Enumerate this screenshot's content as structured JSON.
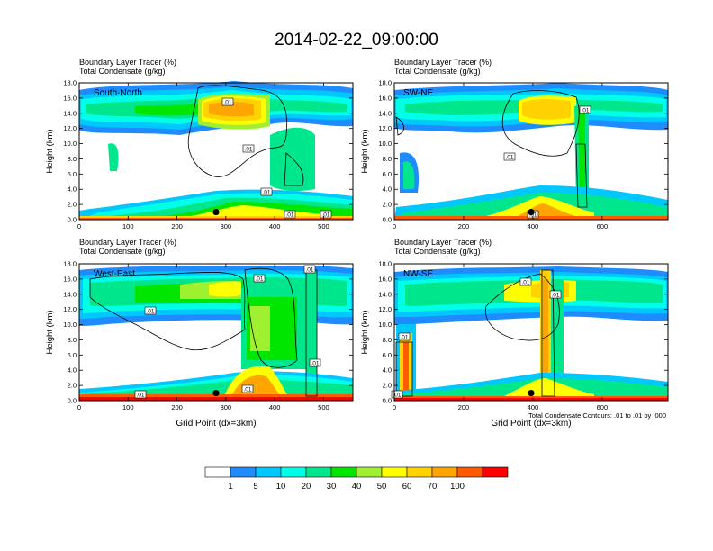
{
  "figure": {
    "title": "2014-02-22_09:00:00",
    "contour_note": "Total Condensate Contours: .01 to .01 by .000"
  },
  "colorbar": {
    "labels": [
      "1",
      "5",
      "10",
      "20",
      "30",
      "40",
      "50",
      "60",
      "70",
      "100"
    ],
    "colors": [
      "#ffffff",
      "#1e8cff",
      "#00c8ff",
      "#00ffe6",
      "#00e68c",
      "#00e600",
      "#a0f032",
      "#ffff00",
      "#ffd200",
      "#ffa500",
      "#ff5a00",
      "#ff0000"
    ]
  },
  "chart_data": [
    {
      "type": "heatmap",
      "panel": "South-North",
      "line1": "Boundary Layer Tracer   (%)",
      "line2": "Total Condensate   (g/kg)",
      "ylabel": "Height (km)",
      "xlabel": "",
      "xlim": [
        0,
        560
      ],
      "ylim": [
        0,
        18
      ],
      "xticks": [
        0,
        100,
        200,
        300,
        400,
        500
      ],
      "yticks": [
        "0.0",
        "2.0",
        "4.0",
        "6.0",
        "8.0",
        "10.0",
        "12.0",
        "14.0",
        "16.0",
        "18.0"
      ],
      "contour_labels": [
        ".01",
        ".01",
        ".01",
        ".01",
        ".01"
      ],
      "marker": {
        "x": 280,
        "y": 1.0
      }
    },
    {
      "type": "heatmap",
      "panel": "SW-NE",
      "line1": "Boundary Layer Tracer   (%)",
      "line2": "Total Condensate   (g/kg)",
      "ylabel": "Height (km)",
      "xlabel": "",
      "xlim": [
        0,
        790
      ],
      "ylim": [
        0,
        18
      ],
      "xticks": [
        0,
        200,
        400,
        600
      ],
      "yticks": [
        "0.0",
        "2.0",
        "4.0",
        "6.0",
        "8.0",
        "10.0",
        "12.0",
        "14.0",
        "16.0",
        "18.0"
      ],
      "contour_labels": [
        ".01",
        ".01",
        ".01",
        ".01"
      ],
      "marker": {
        "x": 395,
        "y": 1.0
      }
    },
    {
      "type": "heatmap",
      "panel": "West-East",
      "line1": "Boundary Layer Tracer   (%)",
      "line2": "Total Condensate   (g/kg)",
      "ylabel": "Height (km)",
      "xlabel": "Grid Point (dx=3km)",
      "xlim": [
        0,
        560
      ],
      "ylim": [
        0,
        18
      ],
      "xticks": [
        0,
        100,
        200,
        300,
        400,
        500
      ],
      "yticks": [
        "0.0",
        "2.0",
        "4.0",
        "6.0",
        "8.0",
        "10.0",
        "12.0",
        "14.0",
        "16.0",
        "18.0"
      ],
      "contour_labels": [
        ".01",
        ".01",
        ".01",
        ".01",
        ".01",
        ".01"
      ],
      "marker": {
        "x": 280,
        "y": 1.0
      }
    },
    {
      "type": "heatmap",
      "panel": "NW-SE",
      "line1": "Boundary Layer Tracer   (%)",
      "line2": "Total Condensate   (g/kg)",
      "ylabel": "Height (km)",
      "xlabel": "Grid Point (dx=3km)",
      "xlim": [
        0,
        790
      ],
      "ylim": [
        0,
        18
      ],
      "xticks": [
        0,
        200,
        400,
        600
      ],
      "yticks": [
        "0.0",
        "2.0",
        "4.0",
        "6.0",
        "8.0",
        "10.0",
        "12.0",
        "14.0",
        "16.0",
        "18.0"
      ],
      "contour_labels": [
        ".01",
        ".01",
        ".01",
        ".01"
      ],
      "marker": {
        "x": 395,
        "y": 1.0
      }
    }
  ]
}
